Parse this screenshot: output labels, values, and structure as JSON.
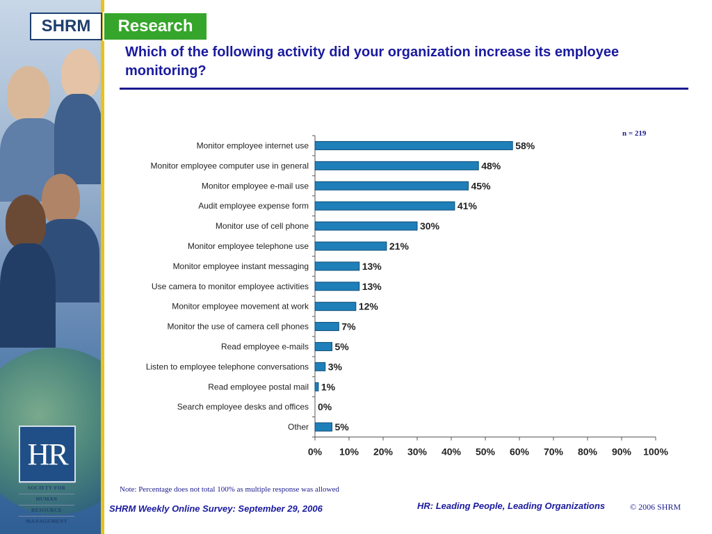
{
  "brand": {
    "org": "SHRM",
    "unit": "Research"
  },
  "title": "Which of the following activity did your organization increase its employee monitoring?",
  "sample_size": "n = 219",
  "note": "Note: Percentage does not total 100% as multiple response was allowed",
  "footer": {
    "survey": "SHRM Weekly Online Survey: September 29, 2006",
    "tagline": "HR: Leading People, Leading Organizations",
    "copyright": "© 2006 SHRM"
  },
  "logo": {
    "mark": "HR",
    "lines": [
      "SOCIETY FOR",
      "HUMAN",
      "RESOURCE",
      "MANAGEMENT"
    ]
  },
  "colors": {
    "bar": "#1f7fb8",
    "bar_stroke": "#0d4f7a",
    "title": "#1a1a9f",
    "research_green": "#36a52b"
  },
  "chart_data": {
    "type": "bar",
    "orientation": "horizontal",
    "categories": [
      "Monitor employee internet use",
      "Monitor employee computer use in general",
      "Monitor employee e-mail use",
      "Audit employee expense form",
      "Monitor use of cell phone",
      "Monitor employee telephone use",
      "Monitor employee instant messaging",
      "Use camera to monitor employee activities",
      "Monitor employee movement at work",
      "Monitor the use of camera cell phones",
      "Read employee e-mails",
      "Listen to employee telephone conversations",
      "Read employee postal mail",
      "Search employee desks and offices",
      "Other"
    ],
    "values": [
      58,
      48,
      45,
      41,
      30,
      21,
      13,
      13,
      12,
      7,
      5,
      3,
      1,
      0,
      5
    ],
    "value_labels": [
      "58%",
      "48%",
      "45%",
      "41%",
      "30%",
      "21%",
      "13%",
      "13%",
      "12%",
      "7%",
      "5%",
      "3%",
      "1%",
      "0%",
      "5%"
    ],
    "xlim": [
      0,
      100
    ],
    "xticks": [
      0,
      10,
      20,
      30,
      40,
      50,
      60,
      70,
      80,
      90,
      100
    ],
    "xtick_labels": [
      "0%",
      "10%",
      "20%",
      "30%",
      "40%",
      "50%",
      "60%",
      "70%",
      "80%",
      "90%",
      "100%"
    ],
    "grid": false,
    "legend": "none"
  }
}
